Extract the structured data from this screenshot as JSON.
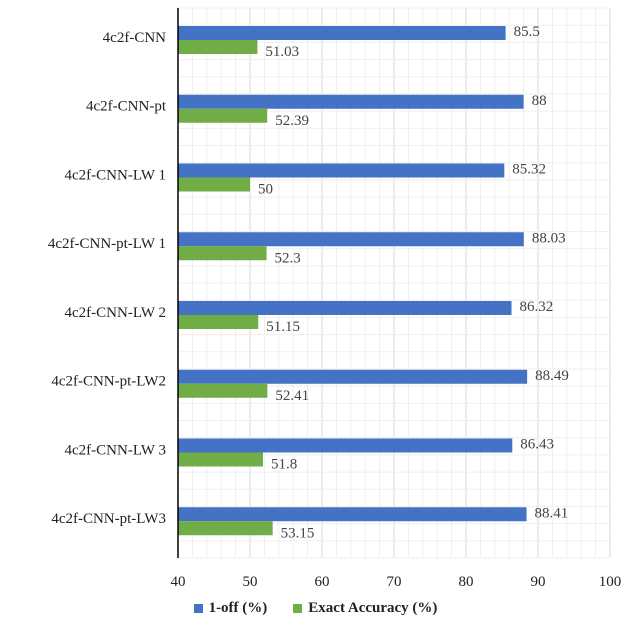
{
  "chart_data": {
    "type": "bar",
    "orientation": "horizontal",
    "categories": [
      "4c2f-CNN",
      "4c2f-CNN-pt",
      "4c2f-CNN-LW 1",
      "4c2f-CNN-pt-LW 1",
      "4c2f-CNN-LW 2",
      "4c2f-CNN-pt-LW2",
      "4c2f-CNN-LW 3",
      "4c2f-CNN-pt-LW3"
    ],
    "series": [
      {
        "name": "1-off (%)",
        "color": "#4472C4",
        "values": [
          85.5,
          88,
          85.32,
          88.03,
          86.32,
          88.49,
          86.43,
          88.41
        ],
        "labels": [
          "85.5",
          "88",
          "85.32",
          "88.03",
          "86.32",
          "88.49",
          "86.43",
          "88.41"
        ]
      },
      {
        "name": "Exact Accuracy (%)",
        "color": "#70AD47",
        "values": [
          51.03,
          52.39,
          50,
          52.3,
          51.15,
          52.41,
          51.8,
          53.15
        ],
        "labels": [
          "51.03",
          "52.39",
          "50",
          "52.3",
          "51.15",
          "52.41",
          "51.8",
          "53.15"
        ]
      }
    ],
    "xlim": [
      40,
      100
    ],
    "xticks": [
      "40",
      "50",
      "60",
      "70",
      "80",
      "90",
      "100"
    ],
    "grid": true,
    "legend_position": "bottom"
  }
}
